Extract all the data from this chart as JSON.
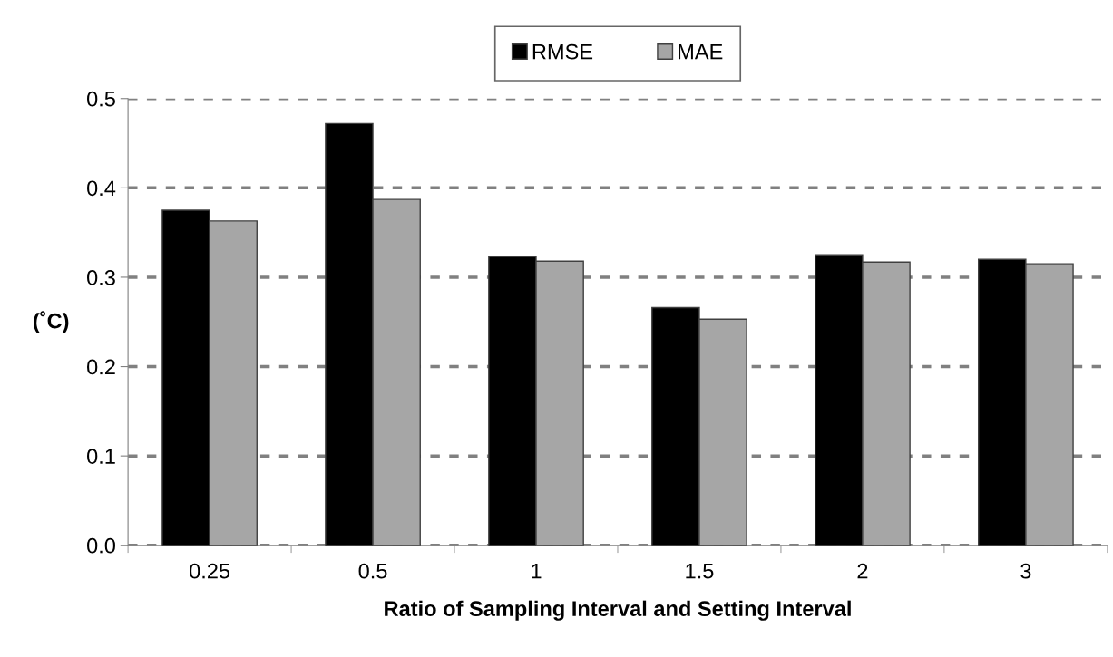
{
  "chart_data": {
    "type": "bar",
    "xlabel": "Ratio of Sampling Interval and Setting Interval",
    "ylabel": "(˚C)",
    "categories": [
      "0.25",
      "0.5",
      "1",
      "1.5",
      "2",
      "3"
    ],
    "series": [
      {
        "name": "RMSE",
        "color": "#000000",
        "values": [
          0.375,
          0.472,
          0.323,
          0.266,
          0.325,
          0.32
        ]
      },
      {
        "name": "MAE",
        "color": "#a6a6a6",
        "values": [
          0.363,
          0.387,
          0.318,
          0.253,
          0.317,
          0.315
        ]
      }
    ],
    "ylim": [
      0,
      0.5
    ],
    "yticks": [
      {
        "value": 0,
        "label": "0.0"
      },
      0.1,
      0.2,
      0.3,
      0.4,
      0.5
    ],
    "grid": "y",
    "legend": "top"
  }
}
